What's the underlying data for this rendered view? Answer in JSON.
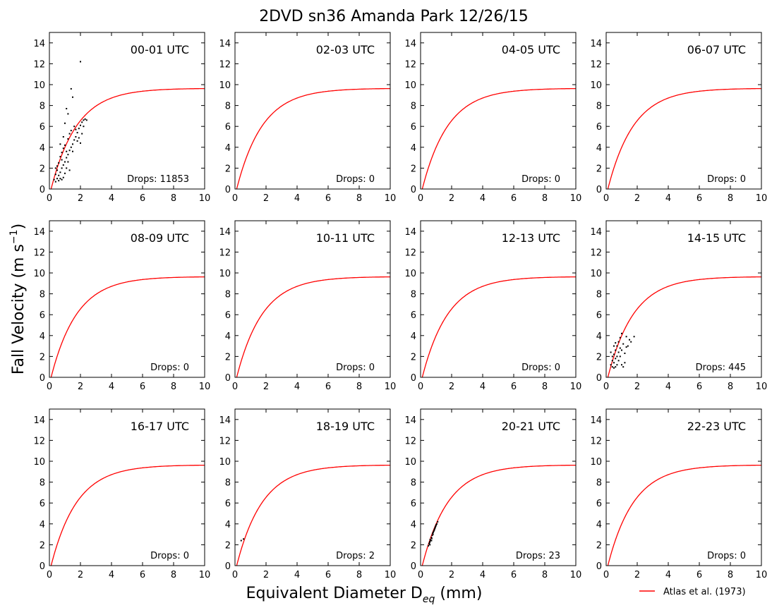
{
  "title": "2DVD sn36 Amanda Park 12/26/15",
  "xlabel_main": "Equivalent Diameter D",
  "xlabel_sub": "eq",
  "xlabel_tail": " (mm)",
  "ylabel_main": "Fall Velocity (m s",
  "ylabel_sup": "−1",
  "ylabel_tail": ")",
  "legend": {
    "label": "Atlas et al. (1973)",
    "color": "#ff0000",
    "placement": "lower-right outside"
  },
  "chart_data": {
    "type": "scatter",
    "xlim": [
      0,
      10
    ],
    "ylim": [
      0,
      15
    ],
    "xticks": [
      0,
      2,
      4,
      6,
      8,
      10
    ],
    "yticks": [
      0,
      2,
      4,
      6,
      8,
      10,
      12,
      14
    ],
    "grid": false,
    "point_color": "#000000",
    "reference_curve": {
      "name": "Atlas et al. (1973)",
      "equation": "v = 9.65 - 10.3 exp(-0.6 D)",
      "color": "#ff0000"
    },
    "panels": [
      {
        "label": "00-01 UTC",
        "drops_text": "Drops: 11853",
        "drops": 11853,
        "points": [
          [
            0.4,
            0.7
          ],
          [
            0.5,
            1.0
          ],
          [
            0.6,
            1.3
          ],
          [
            0.7,
            1.6
          ],
          [
            0.8,
            2.0
          ],
          [
            0.9,
            2.3
          ],
          [
            1.0,
            2.6
          ],
          [
            1.1,
            3.0
          ],
          [
            1.2,
            3.3
          ],
          [
            1.3,
            3.7
          ],
          [
            1.4,
            4.0
          ],
          [
            1.5,
            4.3
          ],
          [
            1.6,
            4.7
          ],
          [
            1.7,
            5.0
          ],
          [
            1.8,
            5.4
          ],
          [
            1.9,
            5.8
          ],
          [
            2.0,
            6.1
          ],
          [
            2.1,
            6.4
          ],
          [
            2.2,
            6.6
          ],
          [
            2.3,
            6.7
          ],
          [
            0.5,
            1.8
          ],
          [
            0.6,
            2.5
          ],
          [
            0.7,
            3.1
          ],
          [
            0.8,
            3.5
          ],
          [
            0.9,
            1.1
          ],
          [
            1.0,
            1.5
          ],
          [
            1.1,
            2.0
          ],
          [
            0.6,
            0.8
          ],
          [
            0.7,
            1.0
          ],
          [
            0.8,
            0.9
          ],
          [
            1.0,
            4.2
          ],
          [
            1.2,
            4.8
          ],
          [
            1.3,
            5.3
          ],
          [
            1.4,
            5.6
          ],
          [
            1.6,
            6.0
          ],
          [
            1.7,
            5.7
          ],
          [
            1.0,
            6.3
          ],
          [
            1.1,
            7.7
          ],
          [
            1.2,
            7.2
          ],
          [
            1.4,
            9.6
          ],
          [
            1.5,
            8.8
          ],
          [
            2.0,
            12.2
          ],
          [
            2.0,
            4.4
          ],
          [
            2.2,
            6.0
          ],
          [
            2.4,
            6.6
          ],
          [
            0.4,
            1.4
          ],
          [
            0.5,
            2.2
          ],
          [
            0.8,
            2.8
          ],
          [
            0.9,
            3.9
          ],
          [
            1.2,
            2.6
          ],
          [
            1.5,
            3.6
          ],
          [
            1.8,
            4.6
          ],
          [
            1.9,
            4.9
          ],
          [
            2.1,
            5.3
          ],
          [
            0.3,
            0.9
          ],
          [
            0.4,
            2.0
          ],
          [
            0.7,
            4.3
          ],
          [
            0.9,
            5.0
          ],
          [
            1.1,
            3.6
          ],
          [
            1.3,
            1.8
          ]
        ]
      },
      {
        "label": "02-03 UTC",
        "drops_text": "Drops: 0",
        "drops": 0,
        "points": []
      },
      {
        "label": "04-05 UTC",
        "drops_text": "Drops: 0",
        "drops": 0,
        "points": []
      },
      {
        "label": "06-07 UTC",
        "drops_text": "Drops: 0",
        "drops": 0,
        "points": []
      },
      {
        "label": "08-09 UTC",
        "drops_text": "Drops: 0",
        "drops": 0,
        "points": []
      },
      {
        "label": "10-11 UTC",
        "drops_text": "Drops: 0",
        "drops": 0,
        "points": []
      },
      {
        "label": "12-13 UTC",
        "drops_text": "Drops: 0",
        "drops": 0,
        "points": []
      },
      {
        "label": "14-15 UTC",
        "drops_text": "Drops: 445",
        "drops": 445,
        "points": [
          [
            0.3,
            1.2
          ],
          [
            0.4,
            1.6
          ],
          [
            0.4,
            2.0
          ],
          [
            0.5,
            1.4
          ],
          [
            0.5,
            2.2
          ],
          [
            0.6,
            1.8
          ],
          [
            0.6,
            2.6
          ],
          [
            0.7,
            2.0
          ],
          [
            0.7,
            3.0
          ],
          [
            0.8,
            2.4
          ],
          [
            0.8,
            3.4
          ],
          [
            0.9,
            2.8
          ],
          [
            0.9,
            3.8
          ],
          [
            1.0,
            4.2
          ],
          [
            1.0,
            1.2
          ],
          [
            1.1,
            1.0
          ],
          [
            1.2,
            1.4
          ],
          [
            1.3,
            3.9
          ],
          [
            1.4,
            3.0
          ],
          [
            1.5,
            3.6
          ],
          [
            1.6,
            3.4
          ],
          [
            1.8,
            3.9
          ],
          [
            0.5,
            0.9
          ],
          [
            0.6,
            1.0
          ],
          [
            0.7,
            1.2
          ],
          [
            0.8,
            1.6
          ],
          [
            0.9,
            2.0
          ],
          [
            1.0,
            2.6
          ],
          [
            1.1,
            3.2
          ],
          [
            0.3,
            2.4
          ],
          [
            0.5,
            3.0
          ],
          [
            0.6,
            3.3
          ],
          [
            0.4,
            1.0
          ],
          [
            1.2,
            2.3
          ],
          [
            1.3,
            2.9
          ]
        ]
      },
      {
        "label": "16-17 UTC",
        "drops_text": "Drops: 0",
        "drops": 0,
        "points": []
      },
      {
        "label": "18-19 UTC",
        "drops_text": "Drops: 2",
        "drops": 2,
        "points": [
          [
            0.4,
            2.4
          ],
          [
            0.55,
            2.55
          ]
        ]
      },
      {
        "label": "20-21 UTC",
        "drops_text": "Drops: 23",
        "drops": 23,
        "points": [
          [
            0.5,
            1.9
          ],
          [
            0.55,
            2.1
          ],
          [
            0.6,
            2.3
          ],
          [
            0.62,
            2.5
          ],
          [
            0.65,
            2.4
          ],
          [
            0.7,
            2.7
          ],
          [
            0.72,
            2.6
          ],
          [
            0.75,
            2.9
          ],
          [
            0.78,
            3.1
          ],
          [
            0.8,
            3.0
          ],
          [
            0.82,
            3.2
          ],
          [
            0.85,
            3.3
          ],
          [
            0.88,
            3.4
          ],
          [
            0.9,
            3.5
          ],
          [
            0.93,
            3.6
          ],
          [
            0.95,
            3.7
          ],
          [
            0.98,
            3.8
          ],
          [
            1.0,
            3.9
          ],
          [
            1.05,
            4.0
          ],
          [
            1.1,
            4.2
          ],
          [
            0.6,
            2.0
          ],
          [
            0.7,
            2.4
          ],
          [
            0.58,
            2.2
          ]
        ]
      },
      {
        "label": "22-23 UTC",
        "drops_text": "Drops: 0",
        "drops": 0,
        "points": []
      }
    ]
  }
}
